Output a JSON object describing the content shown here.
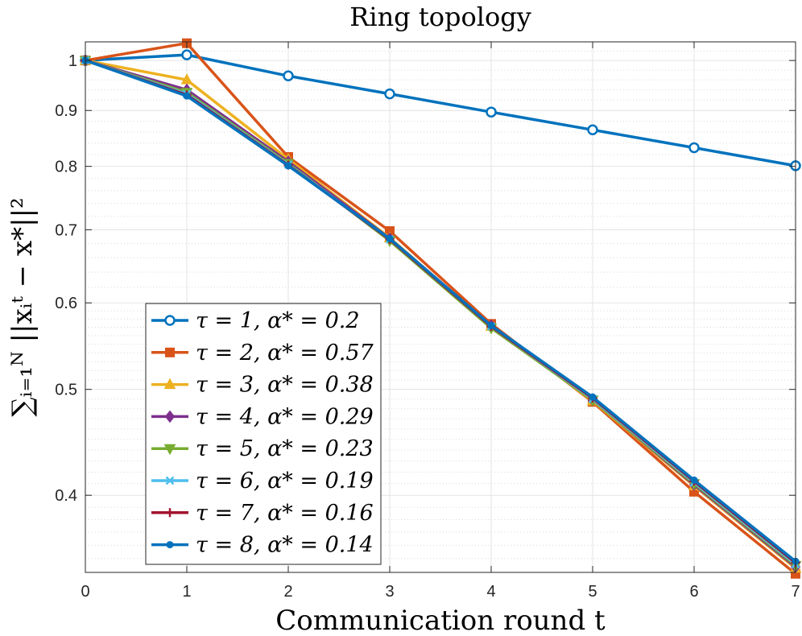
{
  "chart_data": {
    "type": "line",
    "title": "Ring topology",
    "xlabel": "Communication round t",
    "ylabel": "∑ᵢ₌₁ᴺ ||xᵢᵗ − x*||²",
    "yscale": "log",
    "xlim": [
      0,
      7
    ],
    "ylim": [
      0.34,
      1.04
    ],
    "grid": true,
    "legend_position": "bottom-left",
    "x": [
      0,
      1,
      2,
      3,
      4,
      5,
      6,
      7
    ],
    "x_ticks": [
      "0",
      "1",
      "2",
      "3",
      "4",
      "5",
      "6",
      "7"
    ],
    "y_ticks": [
      {
        "value": 0.4,
        "label": "0.4"
      },
      {
        "value": 0.5,
        "label": "0.5"
      },
      {
        "value": 0.6,
        "label": "0.6"
      },
      {
        "value": 0.7,
        "label": "0.7"
      },
      {
        "value": 0.8,
        "label": "0.8"
      },
      {
        "value": 0.9,
        "label": "0.9"
      },
      {
        "value": 1.0,
        "label": "1"
      }
    ],
    "series": [
      {
        "name": "τ = 1, α* = 0.2",
        "color": "#0072BD",
        "marker": "circle",
        "values": [
          1.0,
          1.012,
          0.968,
          0.932,
          0.897,
          0.864,
          0.832,
          0.801
        ]
      },
      {
        "name": "τ = 2, α* = 0.57",
        "color": "#D95319",
        "marker": "square",
        "values": [
          1.0,
          1.037,
          0.816,
          0.698,
          0.574,
          0.487,
          0.403,
          0.339
        ]
      },
      {
        "name": "τ = 3, α* = 0.38",
        "color": "#EDB120",
        "marker": "triangle-up",
        "values": [
          1.0,
          0.96,
          0.812,
          0.688,
          0.571,
          0.488,
          0.408,
          0.343
        ]
      },
      {
        "name": "τ = 4, α* = 0.29",
        "color": "#7E2F8E",
        "marker": "diamond",
        "values": [
          1.0,
          0.94,
          0.808,
          0.687,
          0.572,
          0.489,
          0.409,
          0.344
        ]
      },
      {
        "name": "τ = 5, α* = 0.23",
        "color": "#77AC30",
        "marker": "triangle-down",
        "values": [
          1.0,
          0.935,
          0.805,
          0.684,
          0.569,
          0.489,
          0.41,
          0.345
        ]
      },
      {
        "name": "τ = 6, α* = 0.19",
        "color": "#4DBEEE",
        "marker": "x",
        "values": [
          1.0,
          0.932,
          0.803,
          0.686,
          0.571,
          0.49,
          0.411,
          0.346
        ]
      },
      {
        "name": "τ = 7, α* = 0.16",
        "color": "#A2142F",
        "marker": "plus",
        "values": [
          1.0,
          0.93,
          0.802,
          0.686,
          0.571,
          0.491,
          0.412,
          0.347
        ]
      },
      {
        "name": "τ = 8, α* = 0.14",
        "color": "#0072BD",
        "marker": "dot",
        "values": [
          1.0,
          0.928,
          0.801,
          0.687,
          0.572,
          0.492,
          0.413,
          0.348
        ]
      }
    ]
  }
}
